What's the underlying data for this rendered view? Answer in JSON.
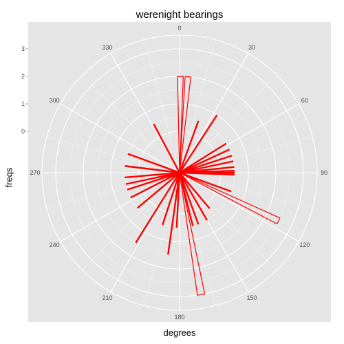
{
  "chart_data": {
    "type": "polar-bar",
    "title": "werenight bearings",
    "xlabel": "degrees",
    "ylabel": "freqs",
    "angle_ticks": [
      "0",
      "30",
      "60",
      "90",
      "120",
      "150",
      "180",
      "210",
      "240",
      "270",
      "300",
      "330"
    ],
    "radial_ticks": [
      "0",
      "1",
      "2",
      "3"
    ],
    "radial_tick_values": [
      0,
      1,
      2,
      3
    ],
    "rlim": [
      -1.5,
      3.5
    ],
    "grid": true,
    "bars": [
      {
        "angle": 0.5,
        "value": 2.0,
        "outline": true
      },
      {
        "angle": 5,
        "value": 2.0,
        "outline": true
      },
      {
        "angle": 20,
        "value": 0.5
      },
      {
        "angle": 33,
        "value": 1.0
      },
      {
        "angle": 58,
        "value": 0.5
      },
      {
        "angle": 65,
        "value": 0.5
      },
      {
        "angle": 72,
        "value": 0.5
      },
      {
        "angle": 78,
        "value": 0.5
      },
      {
        "angle": 84,
        "value": 0.5
      },
      {
        "angle": 88,
        "value": 0.5
      },
      {
        "angle": 90,
        "value": 0.5
      },
      {
        "angle": 92,
        "value": 0.5
      },
      {
        "angle": 110,
        "value": 0.5
      },
      {
        "angle": 116,
        "value": 2.5,
        "outline": true
      },
      {
        "angle": 140,
        "value": 0.2
      },
      {
        "angle": 150,
        "value": 0.5
      },
      {
        "angle": 160,
        "value": 0.5
      },
      {
        "angle": 166,
        "value": 0.5
      },
      {
        "angle": 170,
        "value": 3.0,
        "outline": true
      },
      {
        "angle": 183,
        "value": 0.5
      },
      {
        "angle": 188,
        "value": 1.5
      },
      {
        "angle": 198,
        "value": 0.5
      },
      {
        "angle": 212,
        "value": 1.5
      },
      {
        "angle": 230,
        "value": 0.5
      },
      {
        "angle": 243,
        "value": 0.5
      },
      {
        "angle": 252,
        "value": 0.5
      },
      {
        "angle": 258,
        "value": 0.5
      },
      {
        "angle": 265,
        "value": 0.5
      },
      {
        "angle": 277,
        "value": 0.5
      },
      {
        "angle": 290,
        "value": 0.5
      },
      {
        "angle": 332,
        "value": 0.5
      }
    ],
    "colors": {
      "bar": "#ff0000",
      "panel": "#e5e5e5",
      "grid": "#ffffff",
      "minor_grid": "#f2f2f2",
      "tick_text": "#4d4d4d"
    }
  }
}
